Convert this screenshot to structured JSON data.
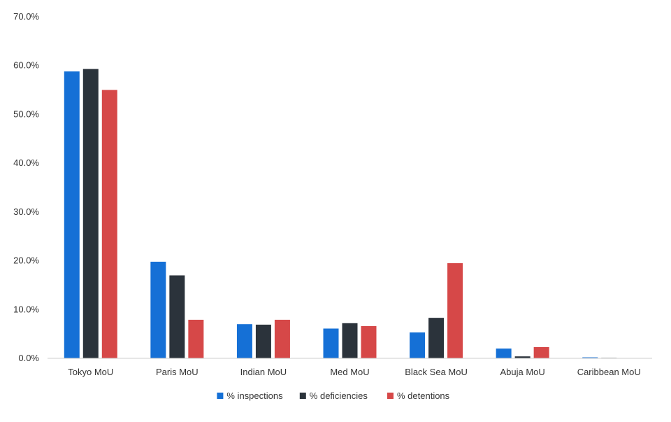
{
  "chart_data": {
    "type": "bar",
    "categories": [
      "Tokyo MoU",
      "Paris MoU",
      "Indian MoU",
      "Med MoU",
      "Black Sea MoU",
      "Abuja MoU",
      "Caribbean MoU"
    ],
    "series": [
      {
        "name": "% inspections",
        "color": "#1570d6",
        "values": [
          58.8,
          19.8,
          7.0,
          6.1,
          5.3,
          2.0,
          0.2
        ]
      },
      {
        "name": "% deficiencies",
        "color": "#2b333b",
        "values": [
          59.3,
          17.0,
          6.9,
          7.2,
          8.3,
          0.4,
          0.1
        ]
      },
      {
        "name": "% detentions",
        "color": "#d64848",
        "values": [
          55.0,
          7.9,
          7.9,
          6.6,
          19.5,
          2.3,
          0.0
        ]
      }
    ],
    "yticks": [
      "0.0%",
      "10.0%",
      "20.0%",
      "30.0%",
      "40.0%",
      "50.0%",
      "60.0%",
      "70.0%"
    ],
    "ylim": [
      0,
      70
    ],
    "grid": false,
    "legend_position": "bottom"
  }
}
